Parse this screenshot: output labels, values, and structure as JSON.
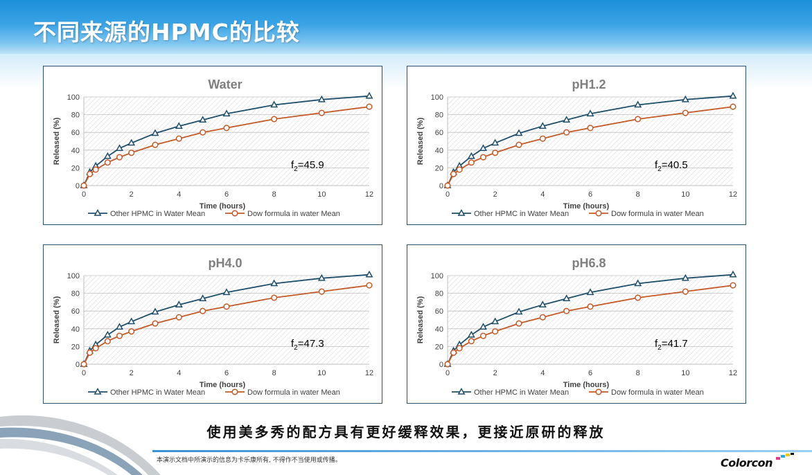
{
  "slide": {
    "title": "不同来源的HPMC的比较",
    "caption": "使用美多秀的配方具有更好缓释效果，更接近原研的释放",
    "footer": "本演示文档中所演示的信息为卡乐康所有, 不得作不当使用或传播。",
    "logo": "Colorcon"
  },
  "colors": {
    "other_series": "#1f4e6b",
    "dow_series": "#c55a28",
    "frame": "#2b4f6e"
  },
  "chart_data": [
    {
      "type": "line",
      "title": "Water",
      "xlabel": "Time (hours)",
      "ylabel": "Released (%)",
      "xlim": [
        0,
        12
      ],
      "ylim": [
        0,
        100
      ],
      "xticks": [
        0,
        2,
        4,
        6,
        8,
        10,
        12
      ],
      "yticks": [
        0,
        20,
        40,
        60,
        80,
        100
      ],
      "grid": "hatched plot area",
      "legend": "bottom",
      "annotation": {
        "base": "f",
        "sub": "2",
        "value": "=45.9"
      },
      "x": [
        0,
        0.25,
        0.5,
        1,
        1.5,
        2,
        3,
        4,
        5,
        6,
        8,
        10,
        12
      ],
      "series": [
        {
          "name": "Other HPMC in Water Mean",
          "marker": "triangle",
          "values": [
            0,
            15,
            22,
            33,
            42,
            48,
            59,
            67,
            74,
            81,
            91,
            97,
            101
          ]
        },
        {
          "name": "Dow formula in water Mean",
          "marker": "circle",
          "values": [
            0,
            13,
            18,
            26,
            32,
            37,
            46,
            53,
            60,
            65,
            75,
            82,
            89
          ]
        }
      ]
    },
    {
      "type": "line",
      "title": "pH1.2",
      "xlabel": "Time (hours)",
      "ylabel": "Released (%)",
      "xlim": [
        0,
        12
      ],
      "ylim": [
        0,
        100
      ],
      "xticks": [
        0,
        2,
        4,
        6,
        8,
        10,
        12
      ],
      "yticks": [
        0,
        20,
        40,
        60,
        80,
        100
      ],
      "grid": "hatched plot area",
      "legend": "bottom",
      "annotation": {
        "base": "f",
        "sub": "2",
        "value": "=40.5"
      },
      "x": [
        0,
        0.25,
        0.5,
        1,
        1.5,
        2,
        3,
        4,
        5,
        6,
        8,
        10,
        12
      ],
      "series": [
        {
          "name": "Other HPMC in Water Mean",
          "marker": "triangle",
          "values": [
            0,
            15,
            22,
            33,
            42,
            48,
            59,
            67,
            74,
            81,
            91,
            97,
            101
          ]
        },
        {
          "name": "Dow formula in water Mean",
          "marker": "circle",
          "values": [
            0,
            13,
            18,
            26,
            32,
            37,
            46,
            53,
            60,
            65,
            75,
            82,
            89
          ]
        }
      ]
    },
    {
      "type": "line",
      "title": "pH4.0",
      "xlabel": "Time (hours)",
      "ylabel": "Released (%)",
      "xlim": [
        0,
        12
      ],
      "ylim": [
        0,
        100
      ],
      "xticks": [
        0,
        2,
        4,
        6,
        8,
        10,
        12
      ],
      "yticks": [
        0,
        20,
        40,
        60,
        80,
        100
      ],
      "grid": "hatched plot area",
      "legend": "bottom",
      "annotation": {
        "base": "f",
        "sub": "2",
        "value": "=47.3"
      },
      "x": [
        0,
        0.25,
        0.5,
        1,
        1.5,
        2,
        3,
        4,
        5,
        6,
        8,
        10,
        12
      ],
      "series": [
        {
          "name": "Other HPMC in Water Mean",
          "marker": "triangle",
          "values": [
            0,
            15,
            22,
            33,
            42,
            48,
            59,
            67,
            74,
            81,
            91,
            97,
            101
          ]
        },
        {
          "name": "Dow formula in water Mean",
          "marker": "circle",
          "values": [
            0,
            13,
            18,
            26,
            32,
            37,
            46,
            53,
            60,
            65,
            75,
            82,
            89
          ]
        }
      ]
    },
    {
      "type": "line",
      "title": "pH6.8",
      "xlabel": "Time (hours)",
      "ylabel": "Released (%)",
      "xlim": [
        0,
        12
      ],
      "ylim": [
        0,
        100
      ],
      "xticks": [
        0,
        2,
        4,
        6,
        8,
        10,
        12
      ],
      "yticks": [
        0,
        20,
        40,
        60,
        80,
        100
      ],
      "grid": "hatched plot area",
      "legend": "bottom",
      "annotation": {
        "base": "f",
        "sub": "2",
        "value": "=41.7"
      },
      "x": [
        0,
        0.25,
        0.5,
        1,
        1.5,
        2,
        3,
        4,
        5,
        6,
        8,
        10,
        12
      ],
      "series": [
        {
          "name": "Other HPMC in Water Mean",
          "marker": "triangle",
          "values": [
            0,
            15,
            22,
            33,
            42,
            48,
            59,
            67,
            74,
            81,
            91,
            97,
            101
          ]
        },
        {
          "name": "Dow formula in water Mean",
          "marker": "circle",
          "values": [
            0,
            13,
            18,
            26,
            32,
            37,
            46,
            53,
            60,
            65,
            75,
            82,
            89
          ]
        }
      ]
    }
  ]
}
